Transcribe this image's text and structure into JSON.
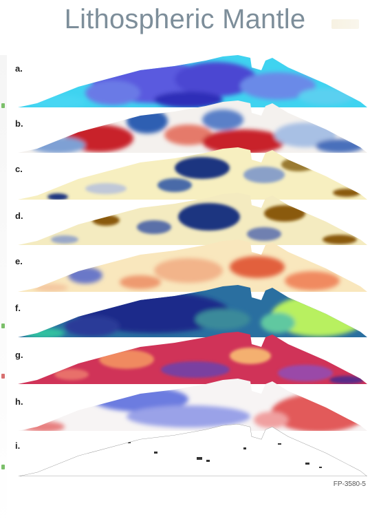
{
  "title": "Lithospheric Mantle",
  "panels": [
    {
      "label": "a."
    },
    {
      "label": "b."
    },
    {
      "label": "c."
    },
    {
      "label": "d."
    },
    {
      "label": "e."
    },
    {
      "label": "f."
    },
    {
      "label": "g."
    },
    {
      "label": "h."
    },
    {
      "label": "i."
    }
  ],
  "figure_code": "FP-3580-5",
  "colors": {
    "title": "#7d8e9a",
    "panel_a": [
      "#3fd3f0",
      "#5a5adf"
    ],
    "panel_b": [
      "#c8202a",
      "#2f5fb2"
    ],
    "panel_c": [
      "#f7efc0",
      "#1f3580"
    ],
    "panel_d": [
      "#f4ebc0",
      "#8a5a10"
    ],
    "panel_e": [
      "#f9e7bd",
      "#e2603c"
    ],
    "panel_f": [
      "#1e2a8a",
      "#b8f060"
    ],
    "panel_g": [
      "#d03358",
      "#7a3fa0"
    ],
    "panel_h": [
      "#6c7ce0",
      "#e25a5a"
    ],
    "panel_i": [
      "#ffffff",
      "#333333"
    ]
  }
}
